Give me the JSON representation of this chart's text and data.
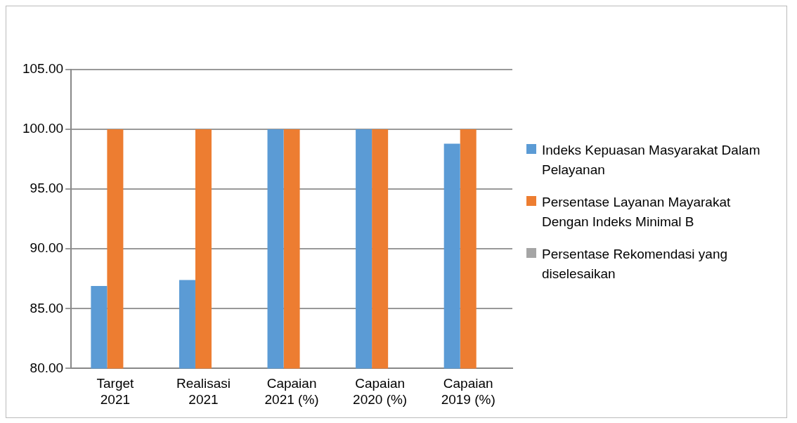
{
  "chart_data": {
    "type": "bar",
    "categories": [
      "Target 2021",
      "Realisasi 2021",
      "Capaian 2021 (%)",
      "Capaian 2020 (%)",
      "Capaian 2019 (%)"
    ],
    "series": [
      {
        "name": "Indeks Kepuasan Masyarakat Dalam Pelayanan",
        "color": "#5b9bd5",
        "values": [
          86.9,
          87.4,
          100,
          100,
          98.8
        ]
      },
      {
        "name": "Persentase Layanan Mayarakat Dengan Indeks Minimal B",
        "color": "#ed7d31",
        "values": [
          100,
          100,
          100,
          100,
          100
        ]
      },
      {
        "name": "Persentase Rekomendasi yang diselesaikan",
        "color": "#a5a5a5",
        "values": [
          null,
          null,
          null,
          null,
          null
        ]
      }
    ],
    "ylim": [
      80,
      105
    ],
    "yticks": [
      {
        "value": 80,
        "label": "80.00"
      },
      {
        "value": 85,
        "label": "85.00"
      },
      {
        "value": 90,
        "label": "90.00"
      },
      {
        "value": 95,
        "label": "95.00"
      },
      {
        "value": 100,
        "label": "100.00"
      },
      {
        "value": 105,
        "label": "105.00"
      }
    ],
    "grid": "y",
    "legend": "right"
  }
}
